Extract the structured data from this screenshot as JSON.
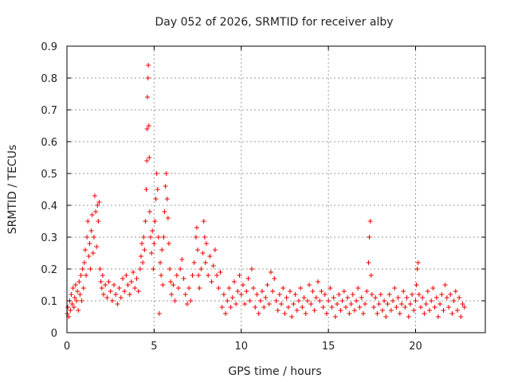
{
  "chart_data": {
    "type": "scatter",
    "title": "Day 052 of 2026, SRMTID for receiver alby",
    "xlabel": "GPS time / hours",
    "ylabel": "SRMTID / TECUs",
    "xlim": [
      0,
      24
    ],
    "ylim": [
      0,
      0.9
    ],
    "xticks": [
      0,
      5,
      10,
      15,
      20
    ],
    "xtick_labels": [
      "0",
      "5",
      "10",
      "15",
      "20"
    ],
    "yticks": [
      0,
      0.1,
      0.2,
      0.3,
      0.4,
      0.5,
      0.6,
      0.7,
      0.8,
      0.9
    ],
    "ytick_labels": [
      "0",
      "0.1",
      "0.2",
      "0.3",
      "0.4",
      "0.5",
      "0.6",
      "0.7",
      "0.8",
      "0.9"
    ],
    "grid": true,
    "marker": "plus",
    "series": [
      {
        "name": "SRMTID",
        "color": "#ee0000",
        "points": [
          [
            0.02,
            0.06
          ],
          [
            0.05,
            0.08
          ],
          [
            0.1,
            0.05
          ],
          [
            0.15,
            0.1
          ],
          [
            0.2,
            0.07
          ],
          [
            0.25,
            0.12
          ],
          [
            0.3,
            0.09
          ],
          [
            0.35,
            0.14
          ],
          [
            0.4,
            0.08
          ],
          [
            0.45,
            0.11
          ],
          [
            0.5,
            0.15
          ],
          [
            0.55,
            0.1
          ],
          [
            0.6,
            0.13
          ],
          [
            0.65,
            0.07
          ],
          [
            0.7,
            0.16
          ],
          [
            0.75,
            0.12
          ],
          [
            0.8,
            0.18
          ],
          [
            0.85,
            0.1
          ],
          [
            0.9,
            0.2
          ],
          [
            0.95,
            0.14
          ],
          [
            1.0,
            0.22
          ],
          [
            1.05,
            0.26
          ],
          [
            1.1,
            0.18
          ],
          [
            1.15,
            0.3
          ],
          [
            1.2,
            0.35
          ],
          [
            1.25,
            0.24
          ],
          [
            1.3,
            0.28
          ],
          [
            1.35,
            0.2
          ],
          [
            1.4,
            0.32
          ],
          [
            1.45,
            0.37
          ],
          [
            1.5,
            0.25
          ],
          [
            1.55,
            0.3
          ],
          [
            1.6,
            0.43
          ],
          [
            1.65,
            0.38
          ],
          [
            1.7,
            0.27
          ],
          [
            1.75,
            0.4
          ],
          [
            1.8,
            0.35
          ],
          [
            1.85,
            0.41
          ],
          [
            1.9,
            0.2
          ],
          [
            1.95,
            0.16
          ],
          [
            2.0,
            0.14
          ],
          [
            2.05,
            0.18
          ],
          [
            2.1,
            0.12
          ],
          [
            2.2,
            0.15
          ],
          [
            2.3,
            0.11
          ],
          [
            2.4,
            0.16
          ],
          [
            2.5,
            0.13
          ],
          [
            2.6,
            0.1
          ],
          [
            2.7,
            0.15
          ],
          [
            2.8,
            0.12
          ],
          [
            2.9,
            0.09
          ],
          [
            3.0,
            0.14
          ],
          [
            3.1,
            0.11
          ],
          [
            3.2,
            0.17
          ],
          [
            3.3,
            0.13
          ],
          [
            3.4,
            0.18
          ],
          [
            3.5,
            0.15
          ],
          [
            3.6,
            0.12
          ],
          [
            3.7,
            0.16
          ],
          [
            3.8,
            0.19
          ],
          [
            3.9,
            0.14
          ],
          [
            4.0,
            0.17
          ],
          [
            4.1,
            0.13
          ],
          [
            4.2,
            0.2
          ],
          [
            4.25,
            0.24
          ],
          [
            4.3,
            0.28
          ],
          [
            4.35,
            0.22
          ],
          [
            4.4,
            0.3
          ],
          [
            4.45,
            0.26
          ],
          [
            4.5,
            0.35
          ],
          [
            4.55,
            0.45
          ],
          [
            4.58,
            0.54
          ],
          [
            4.6,
            0.64
          ],
          [
            4.62,
            0.74
          ],
          [
            4.65,
            0.8
          ],
          [
            4.67,
            0.84
          ],
          [
            4.7,
            0.65
          ],
          [
            4.72,
            0.55
          ],
          [
            4.75,
            0.38
          ],
          [
            4.8,
            0.3
          ],
          [
            4.85,
            0.25
          ],
          [
            4.9,
            0.32
          ],
          [
            4.95,
            0.2
          ],
          [
            5.0,
            0.28
          ],
          [
            5.05,
            0.35
          ],
          [
            5.1,
            0.42
          ],
          [
            5.15,
            0.5
          ],
          [
            5.2,
            0.45
          ],
          [
            5.25,
            0.3
          ],
          [
            5.3,
            0.06
          ],
          [
            5.35,
            0.22
          ],
          [
            5.4,
            0.18
          ],
          [
            5.45,
            0.26
          ],
          [
            5.5,
            0.15
          ],
          [
            5.55,
            0.3
          ],
          [
            5.6,
            0.38
          ],
          [
            5.65,
            0.46
          ],
          [
            5.7,
            0.5
          ],
          [
            5.75,
            0.42
          ],
          [
            5.8,
            0.36
          ],
          [
            5.85,
            0.28
          ],
          [
            5.9,
            0.2
          ],
          [
            5.95,
            0.16
          ],
          [
            6.0,
            0.12
          ],
          [
            6.1,
            0.15
          ],
          [
            6.2,
            0.1
          ],
          [
            6.3,
            0.18
          ],
          [
            6.4,
            0.14
          ],
          [
            6.5,
            0.2
          ],
          [
            6.6,
            0.23
          ],
          [
            6.7,
            0.17
          ],
          [
            6.8,
            0.12
          ],
          [
            6.9,
            0.09
          ],
          [
            7.0,
            0.14
          ],
          [
            7.1,
            0.1
          ],
          [
            7.2,
            0.18
          ],
          [
            7.3,
            0.22
          ],
          [
            7.4,
            0.3
          ],
          [
            7.45,
            0.33
          ],
          [
            7.5,
            0.26
          ],
          [
            7.55,
            0.18
          ],
          [
            7.6,
            0.14
          ],
          [
            7.7,
            0.2
          ],
          [
            7.8,
            0.25
          ],
          [
            7.85,
            0.35
          ],
          [
            7.9,
            0.3
          ],
          [
            7.95,
            0.22
          ],
          [
            8.0,
            0.28
          ],
          [
            8.1,
            0.18
          ],
          [
            8.2,
            0.24
          ],
          [
            8.3,
            0.16
          ],
          [
            8.4,
            0.21
          ],
          [
            8.5,
            0.26
          ],
          [
            8.6,
            0.18
          ],
          [
            8.7,
            0.14
          ],
          [
            8.8,
            0.19
          ],
          [
            8.9,
            0.08
          ],
          [
            9.0,
            0.12
          ],
          [
            9.1,
            0.06
          ],
          [
            9.2,
            0.1
          ],
          [
            9.3,
            0.14
          ],
          [
            9.4,
            0.08
          ],
          [
            9.5,
            0.11
          ],
          [
            9.6,
            0.16
          ],
          [
            9.7,
            0.09
          ],
          [
            9.8,
            0.13
          ],
          [
            9.9,
            0.18
          ],
          [
            10.0,
            0.12
          ],
          [
            10.1,
            0.15
          ],
          [
            10.2,
            0.09
          ],
          [
            10.3,
            0.13
          ],
          [
            10.4,
            0.17
          ],
          [
            10.5,
            0.1
          ],
          [
            10.6,
            0.2
          ],
          [
            10.7,
            0.14
          ],
          [
            10.8,
            0.08
          ],
          [
            10.9,
            0.12
          ],
          [
            11.0,
            0.06
          ],
          [
            11.1,
            0.1
          ],
          [
            11.2,
            0.13
          ],
          [
            11.3,
            0.08
          ],
          [
            11.4,
            0.11
          ],
          [
            11.5,
            0.15
          ],
          [
            11.6,
            0.09
          ],
          [
            11.7,
            0.19
          ],
          [
            11.8,
            0.13
          ],
          [
            11.9,
            0.17
          ],
          [
            12.0,
            0.1
          ],
          [
            12.1,
            0.07
          ],
          [
            12.2,
            0.12
          ],
          [
            12.3,
            0.09
          ],
          [
            12.4,
            0.14
          ],
          [
            12.5,
            0.06
          ],
          [
            12.6,
            0.11
          ],
          [
            12.7,
            0.08
          ],
          [
            12.8,
            0.13
          ],
          [
            12.9,
            0.05
          ],
          [
            13.0,
            0.09
          ],
          [
            13.1,
            0.12
          ],
          [
            13.2,
            0.07
          ],
          [
            13.3,
            0.1
          ],
          [
            13.4,
            0.14
          ],
          [
            13.5,
            0.08
          ],
          [
            13.6,
            0.11
          ],
          [
            13.7,
            0.06
          ],
          [
            13.8,
            0.1
          ],
          [
            13.9,
            0.15
          ],
          [
            14.0,
            0.09
          ],
          [
            14.1,
            0.13
          ],
          [
            14.2,
            0.07
          ],
          [
            14.3,
            0.11
          ],
          [
            14.4,
            0.16
          ],
          [
            14.5,
            0.1
          ],
          [
            14.6,
            0.13
          ],
          [
            14.7,
            0.08
          ],
          [
            14.8,
            0.12
          ],
          [
            14.9,
            0.06
          ],
          [
            15.0,
            0.1
          ],
          [
            15.1,
            0.14
          ],
          [
            15.2,
            0.08
          ],
          [
            15.3,
            0.11
          ],
          [
            15.4,
            0.05
          ],
          [
            15.5,
            0.09
          ],
          [
            15.6,
            0.12
          ],
          [
            15.7,
            0.07
          ],
          [
            15.8,
            0.1
          ],
          [
            15.9,
            0.13
          ],
          [
            16.0,
            0.08
          ],
          [
            16.1,
            0.11
          ],
          [
            16.2,
            0.06
          ],
          [
            16.3,
            0.09
          ],
          [
            16.4,
            0.12
          ],
          [
            16.5,
            0.07
          ],
          [
            16.6,
            0.1
          ],
          [
            16.7,
            0.14
          ],
          [
            16.8,
            0.08
          ],
          [
            16.9,
            0.11
          ],
          [
            17.0,
            0.06
          ],
          [
            17.1,
            0.09
          ],
          [
            17.2,
            0.13
          ],
          [
            17.3,
            0.22
          ],
          [
            17.35,
            0.3
          ],
          [
            17.4,
            0.35
          ],
          [
            17.45,
            0.18
          ],
          [
            17.5,
            0.12
          ],
          [
            17.6,
            0.08
          ],
          [
            17.7,
            0.11
          ],
          [
            17.8,
            0.06
          ],
          [
            17.9,
            0.09
          ],
          [
            18.0,
            0.12
          ],
          [
            18.1,
            0.07
          ],
          [
            18.2,
            0.1
          ],
          [
            18.3,
            0.05
          ],
          [
            18.4,
            0.09
          ],
          [
            18.5,
            0.12
          ],
          [
            18.6,
            0.07
          ],
          [
            18.7,
            0.1
          ],
          [
            18.8,
            0.14
          ],
          [
            18.9,
            0.08
          ],
          [
            19.0,
            0.11
          ],
          [
            19.1,
            0.06
          ],
          [
            19.2,
            0.09
          ],
          [
            19.3,
            0.13
          ],
          [
            19.4,
            0.08
          ],
          [
            19.5,
            0.11
          ],
          [
            19.6,
            0.05
          ],
          [
            19.7,
            0.09
          ],
          [
            19.8,
            0.12
          ],
          [
            19.9,
            0.07
          ],
          [
            20.0,
            0.1
          ],
          [
            20.05,
            0.15
          ],
          [
            20.1,
            0.2
          ],
          [
            20.15,
            0.22
          ],
          [
            20.2,
            0.12
          ],
          [
            20.3,
            0.08
          ],
          [
            20.4,
            0.11
          ],
          [
            20.5,
            0.06
          ],
          [
            20.6,
            0.09
          ],
          [
            20.7,
            0.13
          ],
          [
            20.8,
            0.07
          ],
          [
            20.9,
            0.1
          ],
          [
            21.0,
            0.14
          ],
          [
            21.1,
            0.08
          ],
          [
            21.2,
            0.11
          ],
          [
            21.3,
            0.05
          ],
          [
            21.4,
            0.09
          ],
          [
            21.5,
            0.12
          ],
          [
            21.6,
            0.07
          ],
          [
            21.7,
            0.15
          ],
          [
            21.8,
            0.11
          ],
          [
            21.9,
            0.08
          ],
          [
            22.0,
            0.12
          ],
          [
            22.1,
            0.06
          ],
          [
            22.2,
            0.1
          ],
          [
            22.3,
            0.13
          ],
          [
            22.4,
            0.07
          ],
          [
            22.5,
            0.11
          ],
          [
            22.6,
            0.05
          ],
          [
            22.7,
            0.09
          ],
          [
            22.8,
            0.08
          ]
        ]
      }
    ]
  }
}
